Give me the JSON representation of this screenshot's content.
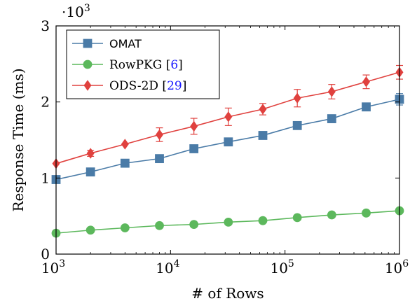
{
  "chart_data": {
    "type": "line",
    "xscale": "log",
    "xlabel": "# of Rows",
    "ylabel": "Response Time (ms)",
    "y_multiplier_label": "·10",
    "y_multiplier_exp": "3",
    "xlim": [
      1000,
      1000000
    ],
    "ylim": [
      0,
      3000
    ],
    "x_ticks": [
      {
        "base": "10",
        "exp": "3",
        "value": 1000
      },
      {
        "base": "10",
        "exp": "4",
        "value": 10000
      },
      {
        "base": "10",
        "exp": "5",
        "value": 100000
      },
      {
        "base": "10",
        "exp": "6",
        "value": 1000000
      }
    ],
    "y_ticks": [
      {
        "label": "0",
        "value": 0
      },
      {
        "label": "1",
        "value": 1000
      },
      {
        "label": "2",
        "value": 2000
      },
      {
        "label": "3",
        "value": 3000
      }
    ],
    "x": [
      1000,
      2000,
      4000,
      8000,
      16000,
      32000,
      64000,
      128000,
      256000,
      512000,
      1000000
    ],
    "series": [
      {
        "name": "OMAT",
        "cite": "",
        "color": "#4a7ba7",
        "marker": "square",
        "values": [
          980,
          1080,
          1195,
          1255,
          1385,
          1475,
          1560,
          1690,
          1780,
          1935,
          2035
        ],
        "errors": [
          0,
          0,
          0,
          0,
          0,
          0,
          30,
          0,
          0,
          50,
          75
        ]
      },
      {
        "name": "RowPKG [",
        "cite": "6",
        "suffix": "]",
        "color": "#5cb85c",
        "marker": "circle",
        "values": [
          275,
          315,
          345,
          375,
          390,
          420,
          440,
          480,
          515,
          540,
          570
        ],
        "errors": [
          0,
          0,
          0,
          0,
          0,
          0,
          0,
          0,
          0,
          0,
          0
        ]
      },
      {
        "name": "ODS-2D [",
        "cite": "29",
        "suffix": "]",
        "color": "#e0413e",
        "marker": "diamond",
        "values": [
          1190,
          1325,
          1445,
          1570,
          1680,
          1805,
          1905,
          2050,
          2135,
          2265,
          2390
        ],
        "errors": [
          0,
          40,
          0,
          90,
          105,
          115,
          75,
          115,
          95,
          90,
          90
        ]
      }
    ],
    "legend_position": "top-left",
    "grid": false
  }
}
